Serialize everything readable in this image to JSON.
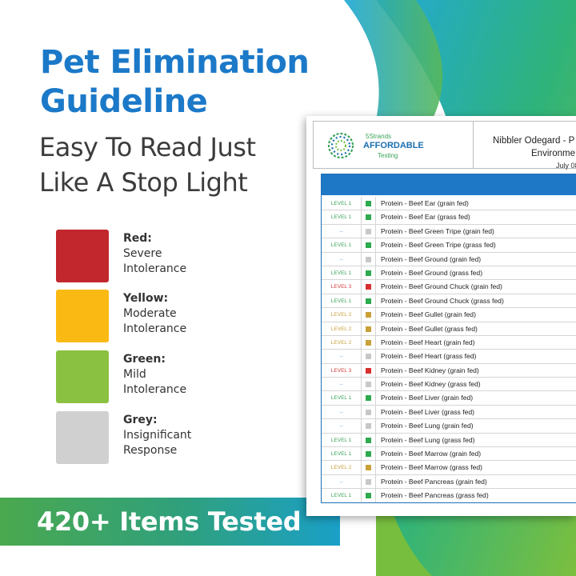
{
  "headline": {
    "title_line1": "Pet Elimination",
    "title_line2": "Guideline",
    "subtitle_line1": "Easy To Read Just",
    "subtitle_line2": "Like A Stop Light"
  },
  "legend": [
    {
      "name": "Red:",
      "desc": "Severe\nIntolerance",
      "color": "#c1272d"
    },
    {
      "name": "Yellow:",
      "desc": "Moderate\nIntolerance",
      "color": "#fbb913"
    },
    {
      "name": "Green:",
      "desc": "Mild\nIntolerance",
      "color": "#8bc140"
    },
    {
      "name": "Grey:",
      "desc": "Insignificant\nResponse",
      "color": "#d0d0d0"
    }
  ],
  "banner": {
    "text": "420+ Items Tested"
  },
  "report": {
    "logo_top": "5Strands",
    "logo_main": "AFFORDABLE",
    "logo_sub": "Testing",
    "title": "Nibbler Odegard - P",
    "env": "Environme",
    "date": "July 08,"
  },
  "level_colors": {
    "LEVEL 1": "#3aa35a",
    "LEVEL 2": "#c9a13a",
    "LEVEL 3": "#d33a3a",
    "–": "#6aa6d8"
  },
  "dot_colors": {
    "LEVEL 1": "#2eaa4f",
    "LEVEL 2": "#c9a13a",
    "LEVEL 3": "#d83030",
    "–": "#c8c8c8"
  },
  "rows": [
    {
      "level": "LEVEL 1",
      "prefix": "Protein",
      "item": " - Beef Ear (grain fed)"
    },
    {
      "level": "LEVEL 1",
      "prefix": "Protein",
      "item": " - Beef Ear (grass fed)"
    },
    {
      "level": "–",
      "prefix": "Protein",
      "item": " - Beef Green Tripe (grain fed)"
    },
    {
      "level": "LEVEL 1",
      "prefix": "Protein",
      "item": " - Beef Green Tripe (grass fed)"
    },
    {
      "level": "–",
      "prefix": "Protein",
      "item": " - Beef Ground (grain fed)"
    },
    {
      "level": "LEVEL 1",
      "prefix": "Protein",
      "item": " - Beef Ground (grass fed)"
    },
    {
      "level": "LEVEL 3",
      "prefix": "Protein",
      "item": " - Beef Ground Chuck (grain fed)"
    },
    {
      "level": "LEVEL 1",
      "prefix": "Protein",
      "item": " - Beef Ground Chuck (grass fed)"
    },
    {
      "level": "LEVEL 2",
      "prefix": "Protein",
      "item": " - Beef Gullet (grain fed)"
    },
    {
      "level": "LEVEL 2",
      "prefix": "Protein",
      "item": " - Beef Gullet (grass fed)"
    },
    {
      "level": "LEVEL 2",
      "prefix": "Protein",
      "item": " - Beef Heart (grain fed)"
    },
    {
      "level": "–",
      "prefix": "Protein",
      "item": " - Beef Heart (grass fed)"
    },
    {
      "level": "LEVEL 3",
      "prefix": "Protein",
      "item": " - Beef Kidney (grain fed)"
    },
    {
      "level": "–",
      "prefix": "Protein",
      "item": " - Beef Kidney (grass fed)"
    },
    {
      "level": "LEVEL 1",
      "prefix": "Protein",
      "item": " - Beef Liver (grain fed)"
    },
    {
      "level": "–",
      "prefix": "Protein",
      "item": " - Beef Liver (grass fed)"
    },
    {
      "level": "–",
      "prefix": "Protein",
      "item": " - Beef Lung (grain fed)"
    },
    {
      "level": "LEVEL 1",
      "prefix": "Protein",
      "item": " - Beef Lung (grass fed)"
    },
    {
      "level": "LEVEL 1",
      "prefix": "Protein",
      "item": " - Beef Marrow (grain fed)"
    },
    {
      "level": "LEVEL 2",
      "prefix": "Protein",
      "item": " - Beef Marrow (grass fed)"
    },
    {
      "level": "–",
      "prefix": "Protein",
      "item": " - Beef Pancreas (grain fed)"
    },
    {
      "level": "LEVEL 1",
      "prefix": "Protein",
      "item": " - Beef Pancreas (grass fed)"
    }
  ]
}
